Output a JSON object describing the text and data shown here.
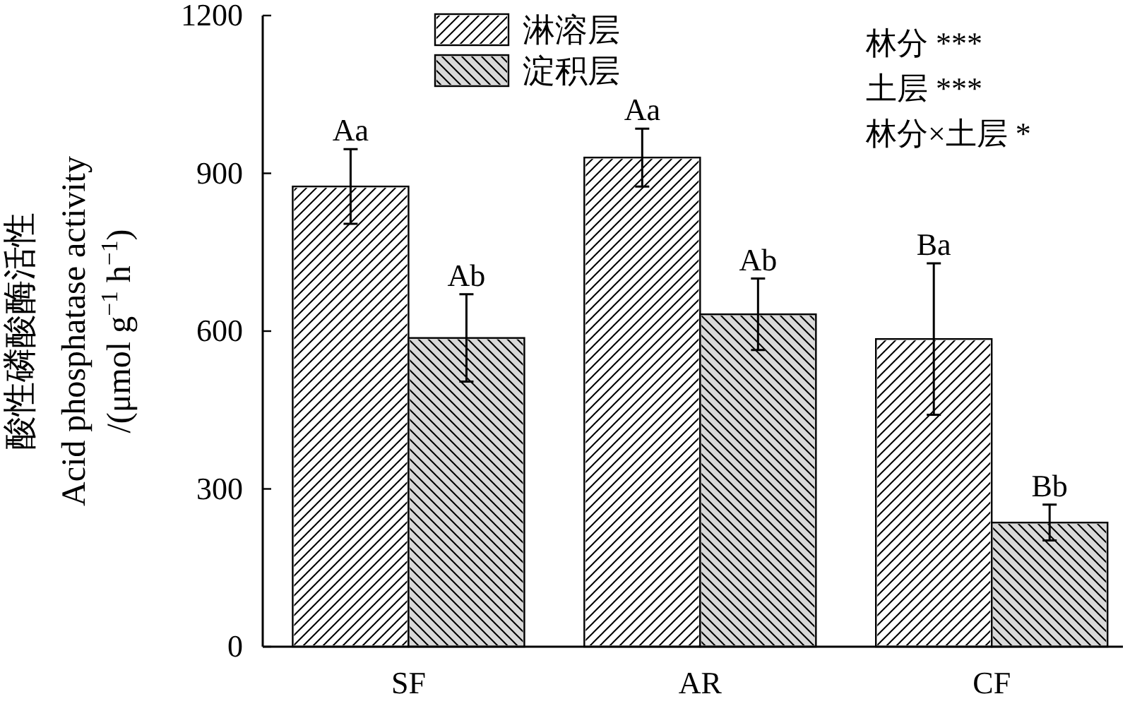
{
  "chart_data": {
    "type": "bar",
    "ylabel": "酸性磷酸酶活性\nAcid phosphatase activity\n/(μmol g$^{−1}$ h$^{−1}$)",
    "categories": [
      "SF",
      "AR",
      "CF"
    ],
    "series": [
      {
        "name": "淋溶层",
        "color": "#ffffff",
        "values": [
          875,
          930,
          585
        ],
        "errors": [
          71,
          55,
          144
        ],
        "value_labels": [
          "Aa",
          "Aa",
          "Ba"
        ]
      },
      {
        "name": "淀积层",
        "color": "#d9d9d9",
        "values": [
          587,
          632,
          236
        ],
        "errors": [
          83,
          68,
          34
        ],
        "value_labels": [
          "Ab",
          "Ab",
          "Bb"
        ]
      }
    ],
    "ylim": [
      0,
      1200
    ],
    "yticks": [
      0,
      300,
      600,
      900,
      1200
    ],
    "legend": "top left",
    "annotations": [
      "林分 ***",
      "土层 ***",
      "林分×土层 *"
    ]
  }
}
